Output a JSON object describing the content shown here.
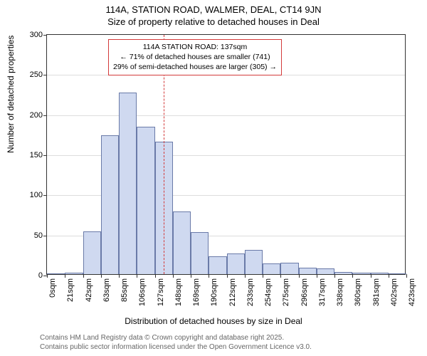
{
  "title_main": "114A, STATION ROAD, WALMER, DEAL, CT14 9JN",
  "title_sub": "Size of property relative to detached houses in Deal",
  "y_axis_label": "Number of detached properties",
  "x_axis_label": "Distribution of detached houses by size in Deal",
  "footer_line1": "Contains HM Land Registry data © Crown copyright and database right 2025.",
  "footer_line2": "Contains public sector information licensed under the Open Government Licence v3.0.",
  "chart": {
    "type": "histogram",
    "ylim": [
      0,
      300
    ],
    "ytick_step": 50,
    "y_ticks": [
      0,
      50,
      100,
      150,
      200,
      250,
      300
    ],
    "x_ticks": [
      "0sqm",
      "21sqm",
      "42sqm",
      "63sqm",
      "85sqm",
      "106sqm",
      "127sqm",
      "148sqm",
      "169sqm",
      "190sqm",
      "212sqm",
      "233sqm",
      "254sqm",
      "275sqm",
      "296sqm",
      "317sqm",
      "338sqm",
      "360sqm",
      "381sqm",
      "402sqm",
      "423sqm"
    ],
    "bar_values": [
      0,
      2,
      53,
      173,
      226,
      184,
      165,
      78,
      52,
      22,
      26,
      30,
      13,
      14,
      8,
      7,
      3,
      2,
      2,
      0
    ],
    "bar_fill": "#cfd9f0",
    "bar_stroke": "#6a7aa8",
    "grid_color": "#dddddd",
    "ref_line_position": 137,
    "ref_line_color": "#d33a3a",
    "ref_line_xmax": 423,
    "annotation": {
      "line1": "114A STATION ROAD: 137sqm",
      "line2": "← 71% of detached houses are smaller (741)",
      "line3": "29% of semi-detached houses are larger (305) →",
      "border_color": "#d33a3a"
    }
  }
}
